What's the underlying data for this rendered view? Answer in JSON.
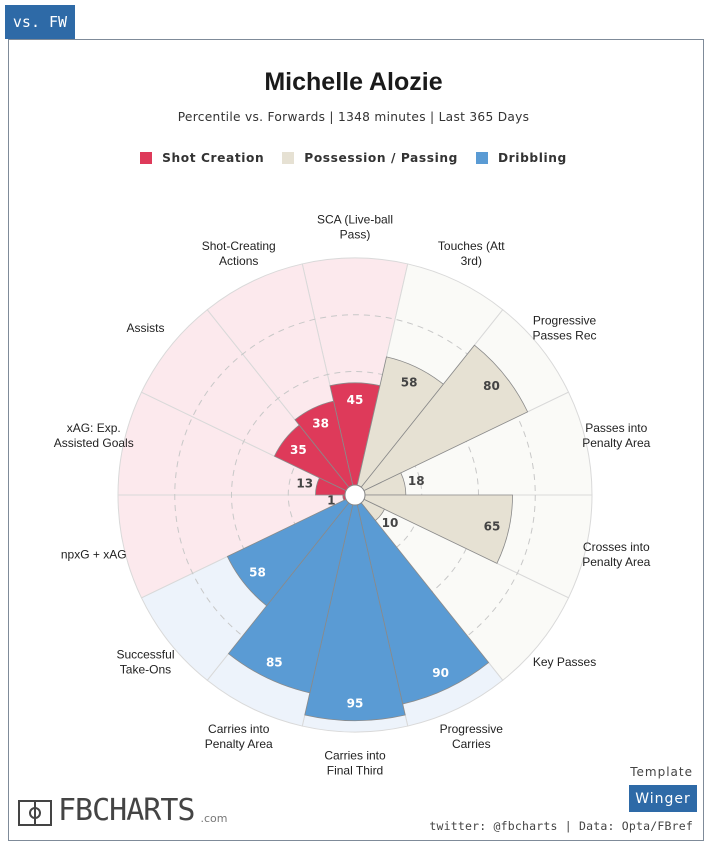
{
  "tab": {
    "label": "vs. FW"
  },
  "header": {
    "title": "Michelle Alozie",
    "subtitle": "Percentile vs. Forwards | 1348 minutes | Last 365 Days"
  },
  "legend": [
    {
      "label": "Shot Creation",
      "color": "#de3a5a"
    },
    {
      "label": "Possession / Passing",
      "color": "#e6e1d3"
    },
    {
      "label": "Dribbling",
      "color": "#5a9bd4"
    }
  ],
  "chart_data": {
    "type": "pie",
    "subtype": "radial-bar (pizza) percentile chart",
    "scale": [
      0,
      100
    ],
    "grid": true,
    "categories": [
      {
        "label": "SCA (Live-ball Pass)",
        "value": 45,
        "group": "Shot Creation"
      },
      {
        "label": "Touches (Att 3rd)",
        "value": 58,
        "group": "Possession / Passing"
      },
      {
        "label": "Progressive Passes Rec",
        "value": 80,
        "group": "Possession / Passing"
      },
      {
        "label": "Passes into Penalty Area",
        "value": 18,
        "group": "Possession / Passing"
      },
      {
        "label": "Crosses into Penalty Area",
        "value": 65,
        "group": "Possession / Passing"
      },
      {
        "label": "Key Passes",
        "value": 10,
        "group": "Possession / Passing"
      },
      {
        "label": "Progressive Carries",
        "value": 90,
        "group": "Dribbling"
      },
      {
        "label": "Carries into Final Third",
        "value": 95,
        "group": "Dribbling"
      },
      {
        "label": "Carries into Penalty Area",
        "value": 85,
        "group": "Dribbling"
      },
      {
        "label": "Successful Take-Ons",
        "value": 58,
        "group": "Dribbling"
      },
      {
        "label": "npxG + xAG",
        "value": 1,
        "group": "Shot Creation"
      },
      {
        "label": "xAG: Exp. Assisted Goals",
        "value": 13,
        "group": "Shot Creation"
      },
      {
        "label": "Assists",
        "value": 35,
        "group": "Shot Creation"
      },
      {
        "label": "Shot-Creating Actions",
        "value": 38,
        "group": "Shot Creation"
      }
    ],
    "label_lines": [
      [
        "SCA (Live-ball",
        "Pass)"
      ],
      [
        "Touches (Att",
        "3rd)"
      ],
      [
        "Progressive",
        "Passes Rec"
      ],
      [
        "Passes into",
        "Penalty Area"
      ],
      [
        "Crosses into",
        "Penalty Area"
      ],
      [
        "Key Passes"
      ],
      [
        "Progressive",
        "Carries"
      ],
      [
        "Carries into",
        "Final Third"
      ],
      [
        "Carries into",
        "Penalty Area"
      ],
      [
        "Successful",
        "Take-Ons"
      ],
      [
        "npxG + xAG"
      ],
      [
        "xAG: Exp.",
        "Assisted Goals"
      ],
      [
        "Assists"
      ],
      [
        "Shot-Creating",
        "Actions"
      ]
    ],
    "group_colors": {
      "Shot Creation": {
        "fill": "#de3a5a",
        "bg": "#fce9ed",
        "text": "#ffffff"
      },
      "Possession / Passing": {
        "fill": "#e6e1d3",
        "bg": "#fafaf7",
        "text": "#444444"
      },
      "Dribbling": {
        "fill": "#5a9bd4",
        "bg": "#edf3fb",
        "text": "#ffffff"
      }
    }
  },
  "footer": {
    "template_label": "Template",
    "template_value": "Winger",
    "brand": "FBCHARTS",
    "brand_suffix": ".com",
    "credits": "twitter: @fbcharts | Data: Opta/FBref"
  }
}
